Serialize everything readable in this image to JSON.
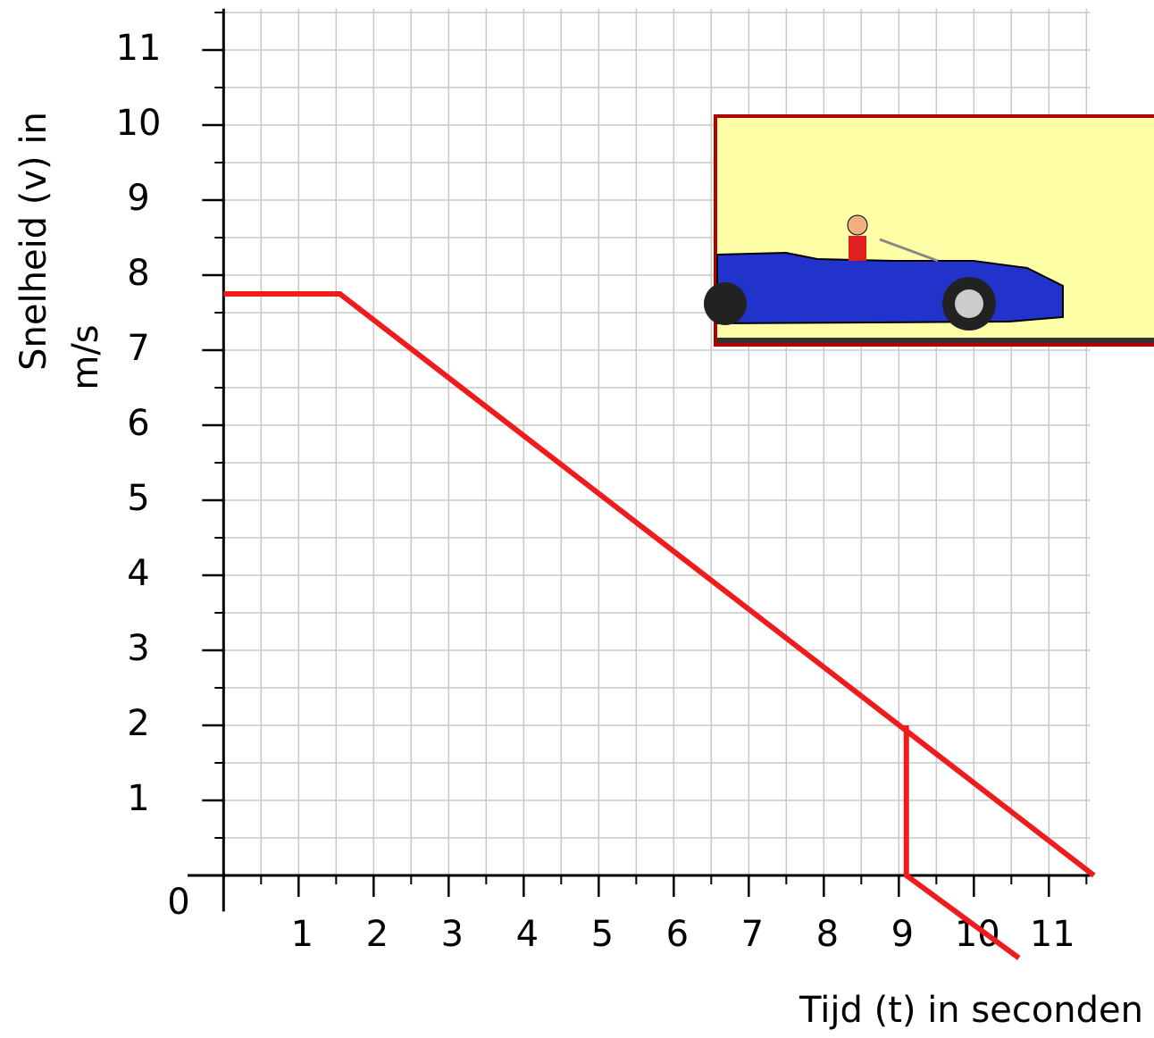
{
  "chart_data": {
    "type": "line",
    "ylabel": [
      "Snelheid (v) in",
      "m/s"
    ],
    "xlabel": "Tijd (t) in seconden",
    "xlim": [
      -0.48,
      11.55
    ],
    "ylim": [
      -0.48,
      11.55
    ],
    "xticks": [
      1,
      2,
      3,
      4,
      5,
      6,
      7,
      8,
      9,
      10,
      11
    ],
    "yticks": [
      0,
      1,
      2,
      3,
      4,
      5,
      6,
      7,
      8,
      9,
      10,
      11
    ],
    "grid": true,
    "series": [
      {
        "color": "#ee1c1c",
        "x": [
          0,
          1.55,
          11.6
        ],
        "values": [
          7.75,
          7.75,
          0
        ]
      },
      {
        "color": "#ee1c1c",
        "x": [
          9.1,
          9.1,
          10.6
        ],
        "values": [
          2,
          0,
          -1.1
        ]
      }
    ]
  }
}
